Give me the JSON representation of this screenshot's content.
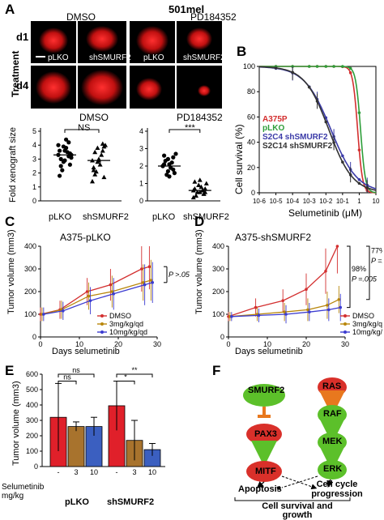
{
  "panel_letters": {
    "A": "A",
    "B": "B",
    "C": "C",
    "D": "D",
    "E": "E",
    "F": "F"
  },
  "panelA": {
    "cell_line": "501mel",
    "conditions": [
      "DMSO",
      "PD184352"
    ],
    "row_labels": [
      "d1",
      "d4"
    ],
    "side_label": "Treatment",
    "image_labels": [
      "pLKO",
      "shSMURF2",
      "pLKO",
      "shSMURF2"
    ]
  },
  "panelA_dot": {
    "ylabel": "Fold xenograft size",
    "left": {
      "title": "DMSO",
      "sig": "NS",
      "categories": [
        "pLKO",
        "shSMURF2"
      ],
      "yticks": [
        "0",
        "1",
        "2",
        "3",
        "4",
        "5"
      ]
    },
    "right": {
      "title": "PD184352",
      "sig": "***",
      "categories": [
        "pLKO",
        "shSMURF2"
      ],
      "yticks": [
        "0",
        "1",
        "2",
        "3",
        "4"
      ]
    }
  },
  "panelB": {
    "ylabel": "Cell survival (%)",
    "xlabel": "Selumetinib  (μM)",
    "yticks": [
      "0",
      "20",
      "40",
      "60",
      "80",
      "100"
    ],
    "xticks": [
      "10-6",
      "10-5",
      "10-4",
      "10-3",
      "10-2",
      "10-1",
      "1",
      "10"
    ],
    "legend": [
      {
        "label": "A375P",
        "color": "#d32f2f"
      },
      {
        "label": "pLKO",
        "color": "#2e9e3a"
      },
      {
        "label": "S2C4 shSMURF2",
        "color": "#3b3ba8"
      },
      {
        "label": "S2C14 shSMURF2",
        "color": "#333333"
      }
    ]
  },
  "panelC": {
    "title": "A375-pLKO",
    "ylabel": "Tumor volume (mm3)",
    "xlabel": "Days selumetinib",
    "yticks": [
      "0",
      "100",
      "200",
      "300",
      "400"
    ],
    "xticks": [
      "0",
      "10",
      "20",
      "30"
    ],
    "pvalue": "P >.05",
    "legend": [
      {
        "label": "DMSO",
        "color": "#d32f2f"
      },
      {
        "label": "3mg/kg/qd",
        "color": "#b8860b"
      },
      {
        "label": "10mg/kg/qd",
        "color": "#3b3bd0"
      }
    ]
  },
  "panelD": {
    "title": "A375-shSMURF2",
    "ylabel": "Tumor volume (mm3)",
    "xlabel": "Days selumetinib",
    "yticks": [
      "0",
      "100",
      "200",
      "300",
      "400"
    ],
    "xticks": [
      "0",
      "10",
      "20",
      "30"
    ],
    "annot1": [
      "98%",
      "P =.005"
    ],
    "annot2": [
      "77%",
      "P =.025"
    ],
    "legend": [
      {
        "label": "DMSO",
        "color": "#d32f2f"
      },
      {
        "label": "3mg/kg/qd",
        "color": "#b8860b"
      },
      {
        "label": "10mg/kg/qd",
        "color": "#3b3bd0"
      }
    ]
  },
  "panelE": {
    "ylabel": "Tumor volume (mm3)",
    "yticks": [
      "0",
      "100",
      "200",
      "300",
      "400",
      "500",
      "600"
    ],
    "sig": [
      "ns",
      "ns",
      "*",
      "**"
    ],
    "dose_header": "Selumetinib mg/kg",
    "doses": [
      "-",
      "3",
      "10",
      "-",
      "3",
      "10"
    ],
    "groups": [
      "pLKO",
      "shSMURF2"
    ]
  },
  "panelF": {
    "left_chain": [
      "SMURF2",
      "PAX3",
      "MITF"
    ],
    "right_chain": [
      "RAS",
      "RAF",
      "MEK",
      "ERK"
    ],
    "outcomes": [
      "Apoptosis",
      "Cell cycle progression"
    ],
    "bottom": "Cell survival and growth"
  },
  "chart_data": [
    {
      "type": "scatter",
      "title": "DMSO",
      "ylabel": "Fold xenograft size",
      "categories": [
        "pLKO",
        "shSMURF2"
      ],
      "ylim": [
        0,
        5
      ],
      "series": [
        {
          "name": "pLKO",
          "values": [
            3.3,
            3.9,
            4.2,
            3.6,
            2.9,
            3.4,
            2.5,
            3.8,
            3.1,
            2.2,
            3.5,
            4.0,
            2.8,
            3.2,
            1.8,
            3.6,
            2.6,
            3.0,
            4.4,
            3.3
          ]
        },
        {
          "name": "shSMURF2",
          "values": [
            2.9,
            3.8,
            4.1,
            2.4,
            3.0,
            1.7,
            3.5,
            2.6,
            4.0,
            2.1,
            3.3,
            1.4,
            2.8,
            3.6,
            2.2,
            2.9,
            3.9,
            1.9
          ]
        }
      ],
      "means": [
        3.3,
        2.9
      ]
    },
    {
      "type": "scatter",
      "title": "PD184352",
      "ylabel": "Fold xenograft size",
      "categories": [
        "pLKO",
        "shSMURF2"
      ],
      "ylim": [
        0,
        4
      ],
      "series": [
        {
          "name": "pLKO",
          "values": [
            2.0,
            2.4,
            1.8,
            2.6,
            2.1,
            1.6,
            2.3,
            1.9,
            2.7,
            1.5,
            2.2,
            2.0,
            1.7,
            2.5,
            2.1,
            1.4
          ]
        },
        {
          "name": "shSMURF2",
          "values": [
            0.6,
            0.9,
            0.4,
            1.1,
            0.5,
            0.7,
            0.3,
            0.8,
            1.0,
            0.5,
            0.6,
            0.2,
            0.9,
            0.4,
            0.7,
            1.2,
            0.5
          ]
        }
      ],
      "means": [
        2.0,
        0.6
      ]
    },
    {
      "type": "line",
      "ylabel": "Cell survival (%)",
      "xlabel": "Selumetinib  (μM)",
      "log_x": true,
      "xlim": [
        1e-06,
        10
      ],
      "ylim": [
        0,
        100
      ],
      "series": [
        {
          "name": "A375P",
          "ic50": 0.8,
          "hill": 3.0,
          "color": "#d32f2f"
        },
        {
          "name": "pLKO",
          "ic50": 1.2,
          "hill": 3.0,
          "color": "#2e9e3a"
        },
        {
          "name": "S2C4 shSMURF2",
          "ic50": 0.02,
          "hill": 0.55,
          "color": "#3b3ba8"
        },
        {
          "name": "S2C14 shSMURF2",
          "ic50": 0.015,
          "hill": 0.6,
          "color": "#333333"
        }
      ]
    },
    {
      "type": "line",
      "title": "A375-pLKO",
      "xlabel": "Days selumetinib",
      "ylabel": "Tumor volume (mm3)",
      "xlim": [
        0,
        30
      ],
      "ylim": [
        0,
        400
      ],
      "x": [
        0,
        5,
        12,
        18,
        26,
        28
      ],
      "series": [
        {
          "name": "DMSO",
          "values": [
            100,
            120,
            200,
            230,
            300,
            310
          ],
          "err": [
            30,
            40,
            60,
            70,
            100,
            100
          ]
        },
        {
          "name": "3mg/kg/qd",
          "values": [
            100,
            120,
            180,
            200,
            240,
            250
          ],
          "err": [
            30,
            40,
            60,
            70,
            80,
            90
          ]
        },
        {
          "name": "10mg/kg/qd",
          "values": [
            100,
            115,
            160,
            190,
            230,
            240
          ],
          "err": [
            30,
            40,
            60,
            70,
            90,
            90
          ]
        }
      ]
    },
    {
      "type": "line",
      "title": "A375-shSMURF2",
      "xlabel": "Days selumetinib",
      "ylabel": "Tumor volume (mm3)",
      "xlim": [
        0,
        30
      ],
      "ylim": [
        0,
        400
      ],
      "x": [
        0,
        7,
        14,
        20,
        25,
        28
      ],
      "series": [
        {
          "name": "DMSO",
          "values": [
            90,
            130,
            160,
            210,
            290,
            400
          ],
          "err": [
            20,
            40,
            50,
            70,
            100,
            120
          ]
        },
        {
          "name": "3mg/kg/qd",
          "values": [
            90,
            100,
            110,
            120,
            140,
            165
          ],
          "err": [
            20,
            30,
            40,
            50,
            60,
            60
          ]
        },
        {
          "name": "10mg/kg/qd",
          "values": [
            90,
            95,
            100,
            110,
            120,
            130
          ],
          "err": [
            20,
            30,
            40,
            40,
            50,
            60
          ]
        }
      ]
    },
    {
      "type": "bar",
      "ylabel": "Tumor volume (mm3)",
      "ylim": [
        0,
        600
      ],
      "categories": [
        "pLKO -",
        "pLKO 3",
        "pLKO 10",
        "shSMURF2 -",
        "shSMURF2 3",
        "shSMURF2 10"
      ],
      "values": [
        320,
        260,
        260,
        395,
        170,
        110
      ],
      "err": [
        220,
        30,
        60,
        160,
        130,
        40
      ],
      "colors": [
        "#e0202a",
        "#a8732d",
        "#3b5fc0",
        "#e0202a",
        "#a8732d",
        "#3b5fc0"
      ]
    }
  ]
}
